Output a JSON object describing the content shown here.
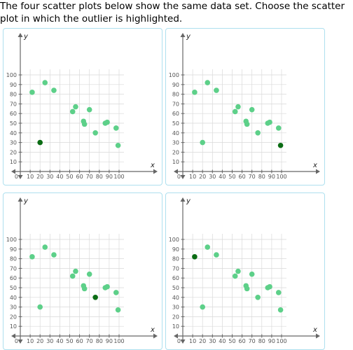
{
  "question": {
    "text": "The four scatter plots below show the same data set. Choose the scatter plot in which the outlier is highlighted."
  },
  "colors": {
    "point": "#5dd089",
    "highlight": "#0b6c14",
    "grid": "#d9d9d9",
    "axis": "#666666",
    "panel_border": "#aee0ef"
  },
  "chart_data": [
    {
      "type": "scatter",
      "option_id": "a",
      "xlabel": "x",
      "ylabel": "y",
      "xlim": [
        0,
        105
      ],
      "ylim": [
        0,
        105
      ],
      "xticks": [
        10,
        20,
        30,
        40,
        50,
        60,
        70,
        80,
        90,
        100
      ],
      "yticks": [
        10,
        20,
        30,
        40,
        50,
        60,
        70,
        80,
        90,
        100
      ],
      "origin_label": "0",
      "grid": true,
      "points": [
        [
          12,
          82
        ],
        [
          20,
          30
        ],
        [
          25,
          92
        ],
        [
          34,
          84
        ],
        [
          53,
          62
        ],
        [
          56,
          67
        ],
        [
          64,
          52
        ],
        [
          65,
          49
        ],
        [
          70,
          64
        ],
        [
          76,
          40
        ],
        [
          86,
          50
        ],
        [
          88,
          51
        ],
        [
          97,
          45
        ],
        [
          99,
          27
        ]
      ],
      "highlighted_index": 1
    },
    {
      "type": "scatter",
      "option_id": "b",
      "xlabel": "x",
      "ylabel": "y",
      "xlim": [
        0,
        105
      ],
      "ylim": [
        0,
        105
      ],
      "xticks": [
        10,
        20,
        30,
        40,
        50,
        60,
        70,
        80,
        90,
        100
      ],
      "yticks": [
        10,
        20,
        30,
        40,
        50,
        60,
        70,
        80,
        90,
        100
      ],
      "origin_label": "0",
      "grid": true,
      "points": [
        [
          12,
          82
        ],
        [
          20,
          30
        ],
        [
          25,
          92
        ],
        [
          34,
          84
        ],
        [
          53,
          62
        ],
        [
          56,
          67
        ],
        [
          64,
          52
        ],
        [
          65,
          49
        ],
        [
          70,
          64
        ],
        [
          76,
          40
        ],
        [
          86,
          50
        ],
        [
          88,
          51
        ],
        [
          97,
          45
        ],
        [
          99,
          27
        ]
      ],
      "highlighted_index": 13
    },
    {
      "type": "scatter",
      "option_id": "c",
      "xlabel": "x",
      "ylabel": "y",
      "xlim": [
        0,
        105
      ],
      "ylim": [
        0,
        105
      ],
      "xticks": [
        10,
        20,
        30,
        40,
        50,
        60,
        70,
        80,
        90,
        100
      ],
      "yticks": [
        10,
        20,
        30,
        40,
        50,
        60,
        70,
        80,
        90,
        100
      ],
      "origin_label": "0",
      "grid": true,
      "points": [
        [
          12,
          82
        ],
        [
          20,
          30
        ],
        [
          25,
          92
        ],
        [
          34,
          84
        ],
        [
          53,
          62
        ],
        [
          56,
          67
        ],
        [
          64,
          52
        ],
        [
          65,
          49
        ],
        [
          70,
          64
        ],
        [
          76,
          40
        ],
        [
          86,
          50
        ],
        [
          88,
          51
        ],
        [
          97,
          45
        ],
        [
          99,
          27
        ]
      ],
      "highlighted_index": 9
    },
    {
      "type": "scatter",
      "option_id": "d",
      "xlabel": "x",
      "ylabel": "y",
      "xlim": [
        0,
        105
      ],
      "ylim": [
        0,
        105
      ],
      "xticks": [
        10,
        20,
        30,
        40,
        50,
        60,
        70,
        80,
        90,
        100
      ],
      "yticks": [
        10,
        20,
        30,
        40,
        50,
        60,
        70,
        80,
        90,
        100
      ],
      "origin_label": "0",
      "grid": true,
      "points": [
        [
          12,
          82
        ],
        [
          20,
          30
        ],
        [
          25,
          92
        ],
        [
          34,
          84
        ],
        [
          53,
          62
        ],
        [
          56,
          67
        ],
        [
          64,
          52
        ],
        [
          65,
          49
        ],
        [
          70,
          64
        ],
        [
          76,
          40
        ],
        [
          86,
          50
        ],
        [
          88,
          51
        ],
        [
          97,
          45
        ],
        [
          99,
          27
        ]
      ],
      "highlighted_index": 0
    }
  ]
}
